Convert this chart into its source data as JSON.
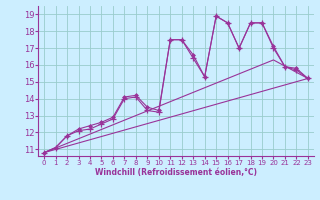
{
  "xlabel": "Windchill (Refroidissement éolien,°C)",
  "bg_color": "#cceeff",
  "grid_color": "#99cccc",
  "line_color": "#993399",
  "xlim": [
    -0.5,
    23.5
  ],
  "ylim": [
    10.6,
    19.5
  ],
  "yticks": [
    11,
    12,
    13,
    14,
    15,
    16,
    17,
    18,
    19
  ],
  "xticks": [
    0,
    1,
    2,
    3,
    4,
    5,
    6,
    7,
    8,
    9,
    10,
    11,
    12,
    13,
    14,
    15,
    16,
    17,
    18,
    19,
    20,
    21,
    22,
    23
  ],
  "series1_x": [
    0,
    1,
    2,
    3,
    4,
    5,
    6,
    7,
    8,
    9,
    10,
    11,
    12,
    13,
    14,
    15,
    16,
    17,
    18,
    19,
    20,
    21,
    22,
    23
  ],
  "series1_y": [
    10.8,
    11.1,
    11.8,
    12.1,
    12.2,
    12.5,
    12.8,
    14.0,
    14.1,
    13.3,
    13.2,
    17.5,
    17.5,
    16.4,
    15.3,
    18.9,
    18.5,
    17.0,
    18.5,
    18.5,
    17.0,
    15.9,
    15.7,
    15.2
  ],
  "series2_x": [
    0,
    1,
    2,
    3,
    4,
    5,
    6,
    7,
    8,
    9,
    10,
    11,
    12,
    13,
    14,
    15,
    16,
    17,
    18,
    19,
    20,
    21,
    22,
    23
  ],
  "series2_y": [
    10.8,
    11.1,
    11.8,
    12.2,
    12.4,
    12.6,
    12.9,
    14.1,
    14.2,
    13.5,
    13.3,
    17.5,
    17.5,
    16.6,
    15.3,
    18.9,
    18.5,
    17.0,
    18.5,
    18.5,
    17.1,
    15.9,
    15.8,
    15.2
  ],
  "line3_x": [
    0,
    23
  ],
  "line3_y": [
    10.8,
    15.2
  ],
  "line4_x": [
    0,
    20,
    23
  ],
  "line4_y": [
    10.8,
    16.3,
    15.2
  ]
}
